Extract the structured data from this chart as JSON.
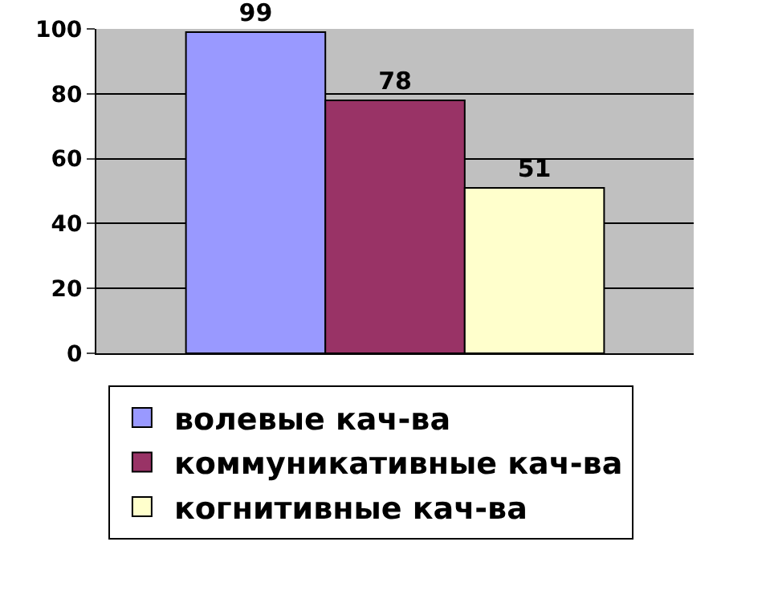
{
  "chart_data": {
    "type": "bar",
    "categories": [
      null
    ],
    "series": [
      {
        "name": "волевые кач-ва",
        "color": "#9999ff",
        "values": [
          99
        ]
      },
      {
        "name": "коммуникативные кач-ва",
        "color": "#993366",
        "values": [
          78
        ]
      },
      {
        "name": "когнитивные кач-ва",
        "color": "#ffffcc",
        "values": [
          51
        ]
      }
    ],
    "ylim": [
      0,
      100
    ],
    "yticks": [
      0,
      20,
      40,
      60,
      80,
      100
    ],
    "grid": "y",
    "data_labels": true,
    "legend": "bottom"
  }
}
